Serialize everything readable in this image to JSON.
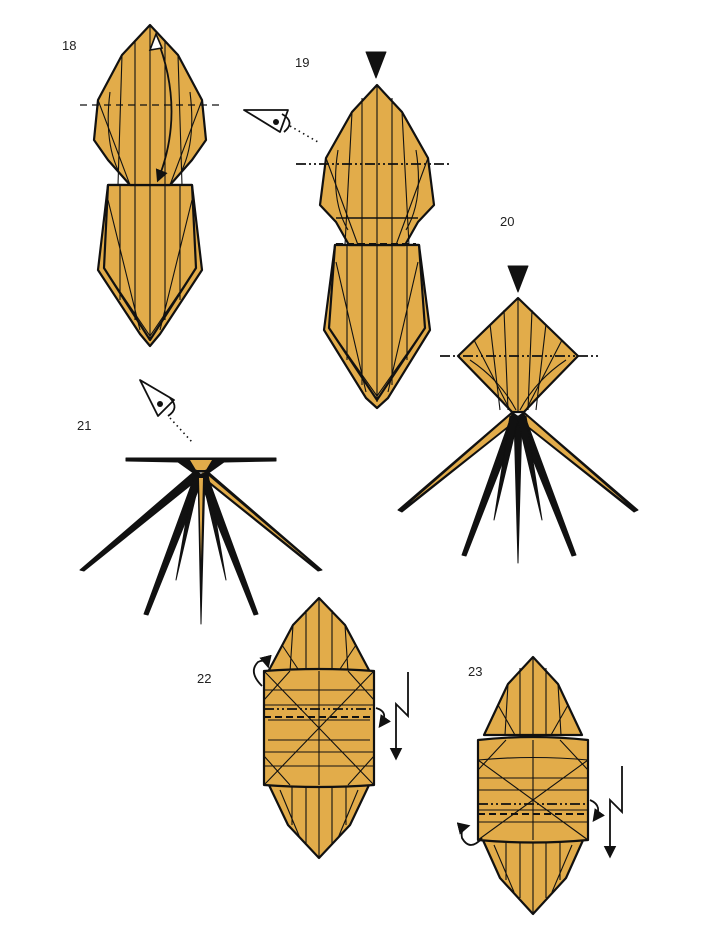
{
  "steps": [
    {
      "id": "18",
      "label": "18"
    },
    {
      "id": "19",
      "label": "19"
    },
    {
      "id": "20",
      "label": "20"
    },
    {
      "id": "21",
      "label": "21"
    },
    {
      "id": "22",
      "label": "22"
    },
    {
      "id": "23",
      "label": "23"
    }
  ],
  "colors": {
    "paper": "#e2ac4a",
    "ink": "#111111",
    "background": "#ffffff"
  },
  "icons": [
    "eye-icon",
    "push-arrow-icon",
    "fold-arrow-icon",
    "zigzag-arrow-icon",
    "flip-arrow-icon"
  ]
}
